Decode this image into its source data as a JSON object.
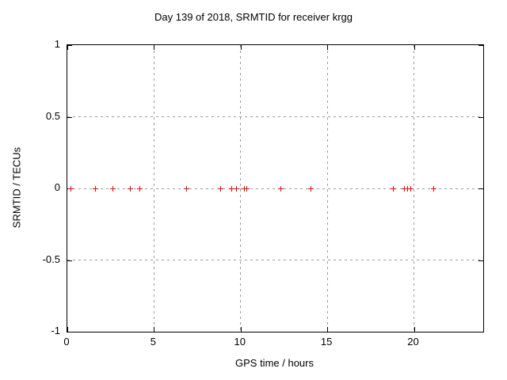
{
  "figure": {
    "title": "Day 139 of 2018, SRMTID for receiver krgg"
  },
  "chart_data": {
    "type": "scatter",
    "title": "Day 139 of 2018, SRMTID for receiver krgg",
    "xlabel": "GPS time / hours",
    "ylabel": "SRMTID / TECUs",
    "xlim": [
      0,
      24
    ],
    "ylim": [
      -1,
      1
    ],
    "xticks": {
      "values": [
        0,
        5,
        10,
        15,
        20
      ],
      "labels": [
        "0",
        "5",
        "10",
        "15",
        "20"
      ]
    },
    "yticks": {
      "values": [
        1,
        0.5,
        0,
        -0.5,
        -1
      ],
      "labels": [
        "1",
        "0.5",
        "0",
        "-0.5",
        "-1"
      ]
    },
    "grid": true,
    "legend": "none",
    "series": [
      {
        "name": "SRMTID",
        "marker": "plus",
        "color": "#ff0000",
        "x": [
          0.2,
          1.6,
          2.65,
          3.65,
          4.2,
          6.9,
          8.85,
          9.5,
          9.75,
          10.2,
          10.35,
          12.3,
          14.05,
          18.8,
          19.45,
          19.65,
          19.8,
          21.15
        ],
        "y": [
          0,
          0,
          0,
          0,
          0,
          0,
          0,
          0,
          0,
          0,
          0,
          0,
          0,
          0,
          0,
          0,
          0,
          0
        ]
      }
    ],
    "colors": {
      "background": "#ffffff",
      "border": "#000000",
      "grid": "#9a9a9a",
      "text": "#000000",
      "marker": "#ff0000"
    }
  }
}
